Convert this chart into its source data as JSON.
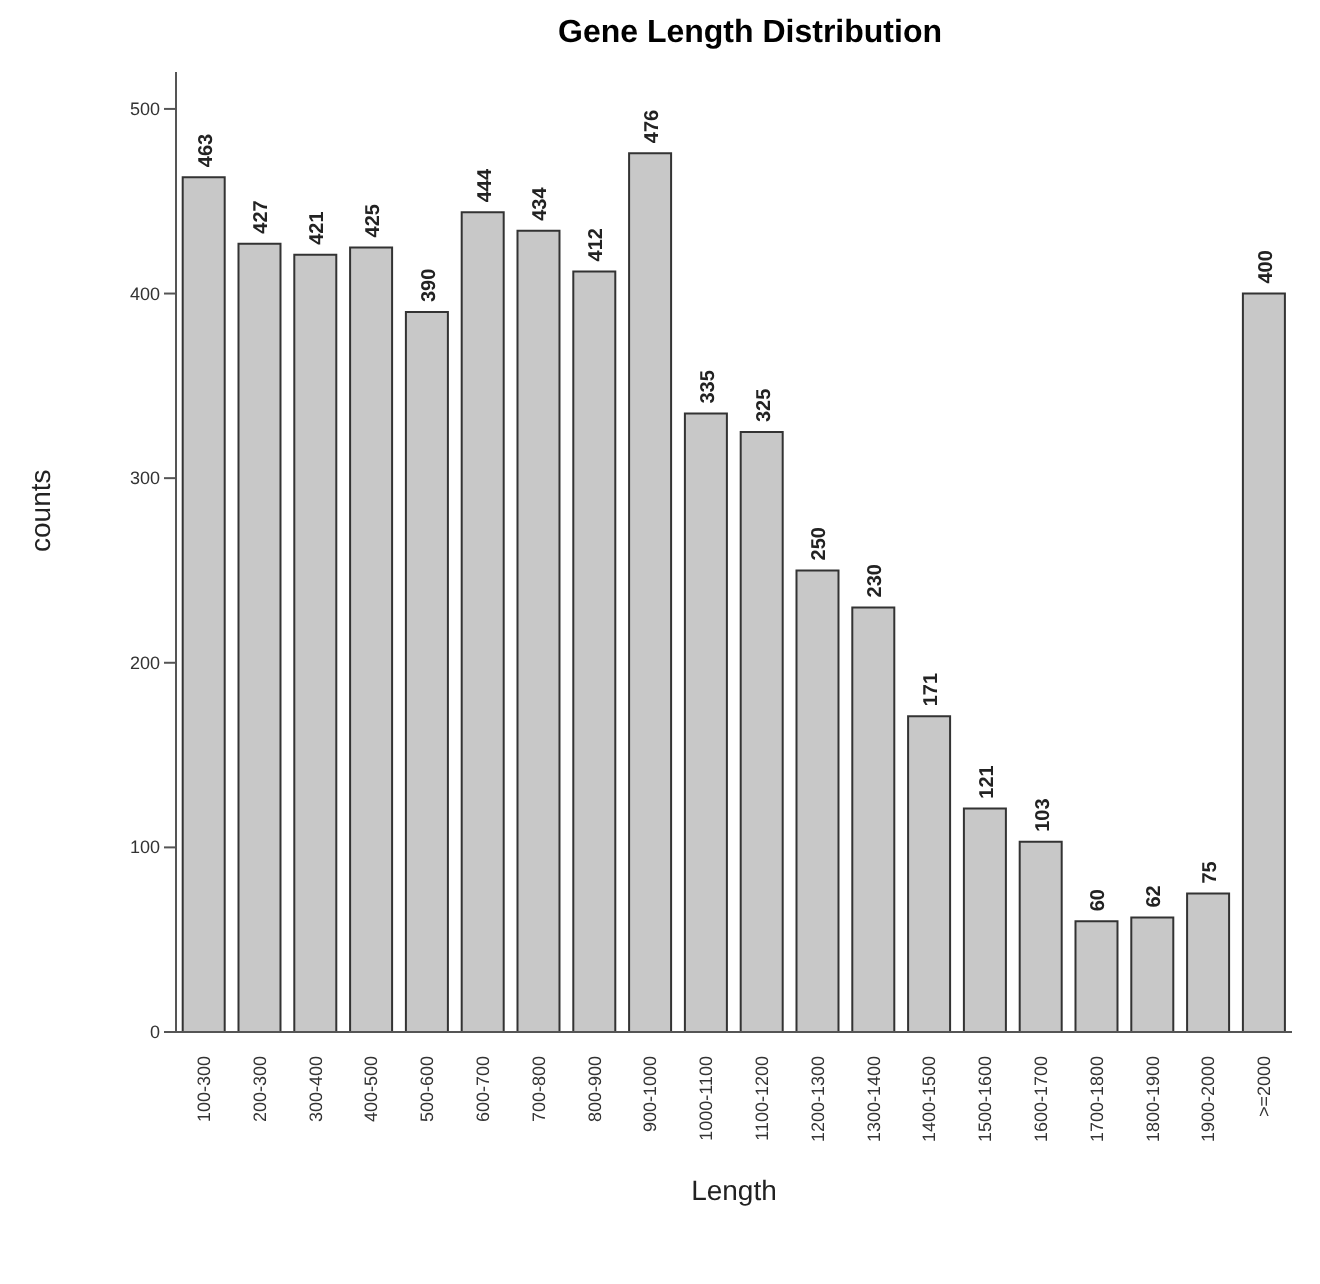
{
  "chart_data": {
    "type": "bar",
    "title": "Gene Length Distribution",
    "xlabel": "Length",
    "ylabel": "counts",
    "categories": [
      "100-300",
      "200-300",
      "300-400",
      "400-500",
      "500-600",
      "600-700",
      "700-800",
      "800-900",
      "900-1000",
      "1000-1100",
      "1100-1200",
      "1200-1300",
      "1300-1400",
      "1400-1500",
      "1500-1600",
      "1600-1700",
      "1700-1800",
      "1800-1900",
      "1900-2000",
      ">=2000"
    ],
    "values": [
      463,
      427,
      421,
      425,
      390,
      444,
      434,
      412,
      476,
      335,
      325,
      250,
      230,
      171,
      121,
      103,
      60,
      62,
      75,
      400
    ],
    "color": "#c8c8c8",
    "ylim": [
      0,
      520
    ],
    "yticks": [
      0,
      100,
      200,
      300,
      400,
      500
    ],
    "data_labels": true,
    "grid": false,
    "legend": false
  }
}
